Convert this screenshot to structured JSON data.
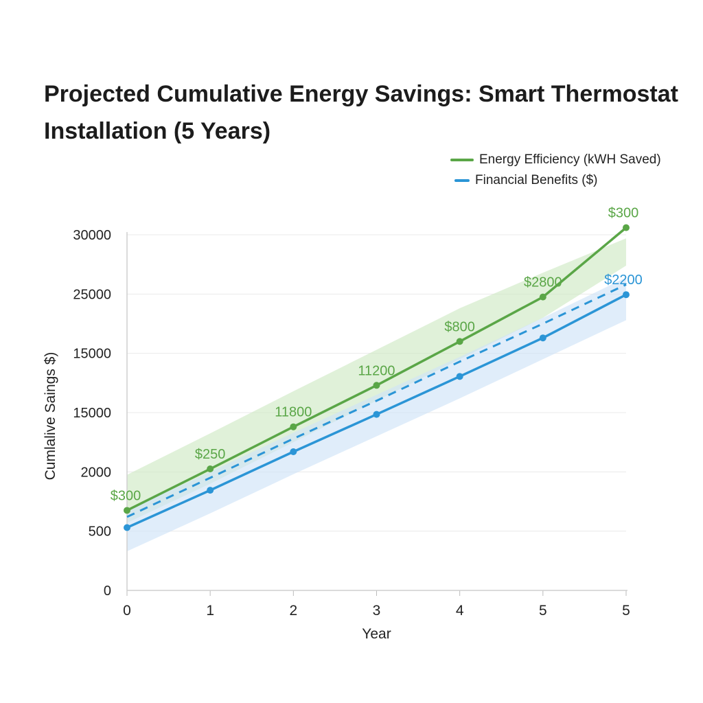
{
  "title": "Projected Cumulative Energy Savings: Smart Thermostat Installation (5 Years)",
  "legend": [
    {
      "label": "Energy Efficiency (kWH Saved)",
      "color": "#5aa647",
      "swatch_width": 34
    },
    {
      "label": "Financial Benefits ($)",
      "color": "#2b95d6",
      "swatch_width": 22
    }
  ],
  "chart_data": {
    "type": "line",
    "title": "Projected Cumulative Energy Savings: Smart Thermostat Installation (5 Years)",
    "xlabel": "Year",
    "ylabel": "Cumlalive Saings $)",
    "x_tick_labels": [
      "0",
      "1",
      "2",
      "3",
      "4",
      "5",
      "5"
    ],
    "y_tick_labels": [
      "0",
      "500",
      "2000",
      "15000",
      "15000",
      "25000",
      "30000"
    ],
    "ylim": [
      0,
      30000
    ],
    "grid": true,
    "legend_position": "top-right",
    "series": [
      {
        "name": "Energy Efficiency (kWH Saved)",
        "color": "#5aa647",
        "band_color": "#cfe9c4",
        "line_style": "solid",
        "values": [
          6750,
          10250,
          13800,
          17300,
          21000,
          24750,
          30600
        ],
        "band_upper": [
          9750,
          13250,
          16800,
          20300,
          23800,
          26800,
          29700
        ],
        "band_lower": [
          5700,
          9000,
          12500,
          16000,
          19500,
          23000,
          27400
        ],
        "data_labels": [
          "$300",
          "$250",
          "11800",
          "11200",
          "$800",
          "$2800",
          "$300"
        ]
      },
      {
        "name": "Financial Benefits ($)",
        "color": "#2b95d6",
        "band_color": "#cfe3f7",
        "line_style": "solid",
        "values": [
          5300,
          8450,
          11700,
          14850,
          18050,
          21300,
          24950
        ],
        "band_upper": [
          6750,
          10000,
          13300,
          16500,
          19700,
          23000,
          26400
        ],
        "band_lower": [
          3300,
          6500,
          9800,
          13000,
          16200,
          19500,
          22800
        ],
        "data_labels": [
          "",
          "",
          "",
          "",
          "",
          "",
          "$2200"
        ]
      },
      {
        "name": "",
        "color": "#2b95d6",
        "line_style": "dashed",
        "values": [
          6200,
          9500,
          12800,
          16000,
          19300,
          22500,
          25800
        ]
      }
    ]
  }
}
